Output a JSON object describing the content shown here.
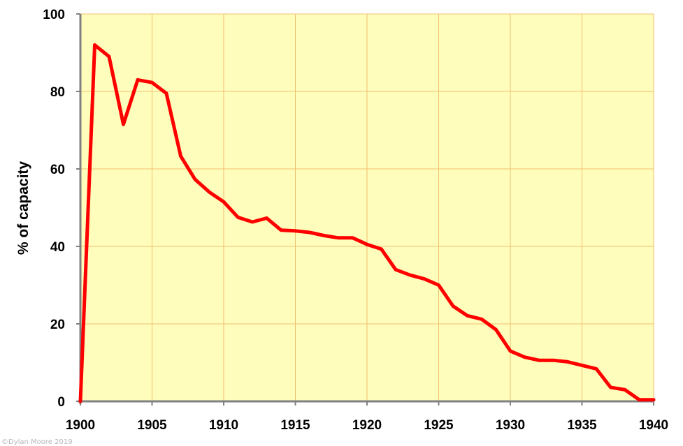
{
  "chart_data": {
    "type": "line",
    "ylabel": "% of capacity",
    "xlim": [
      1900,
      1940
    ],
    "ylim": [
      0,
      100
    ],
    "x_ticks": [
      "1900",
      "1905",
      "1910",
      "1915",
      "1920",
      "1925",
      "1930",
      "1935",
      "1940"
    ],
    "y_ticks": [
      "0",
      "20",
      "40",
      "60",
      "80",
      "100"
    ],
    "grid": true,
    "plot_background": "#FFFDBB",
    "grid_color": "#F0C070",
    "series": [
      {
        "color": "#FF0000",
        "x": [
          1900,
          1901,
          1902,
          1903,
          1904,
          1905,
          1906,
          1907,
          1908,
          1909,
          1910,
          1911,
          1912,
          1913,
          1914,
          1915,
          1916,
          1917,
          1918,
          1919,
          1920,
          1921,
          1922,
          1923,
          1924,
          1925,
          1926,
          1927,
          1928,
          1929,
          1930,
          1931,
          1932,
          1933,
          1934,
          1935,
          1936,
          1937,
          1938,
          1939,
          1940
        ],
        "y": [
          0,
          92,
          89,
          71.5,
          83,
          82.3,
          79.5,
          63.3,
          57.3,
          54,
          51.5,
          47.5,
          46.3,
          47.3,
          44.2,
          44,
          43.6,
          42.8,
          42.2,
          42.2,
          40.5,
          39.3,
          34,
          32.6,
          31.6,
          30,
          24.6,
          22.1,
          21.2,
          18.5,
          13,
          11.4,
          10.6,
          10.6,
          10.2,
          9.3,
          8.4,
          3.6,
          3,
          0.4,
          0.4
        ]
      }
    ]
  },
  "credit": "©Dylan Moore 2019"
}
